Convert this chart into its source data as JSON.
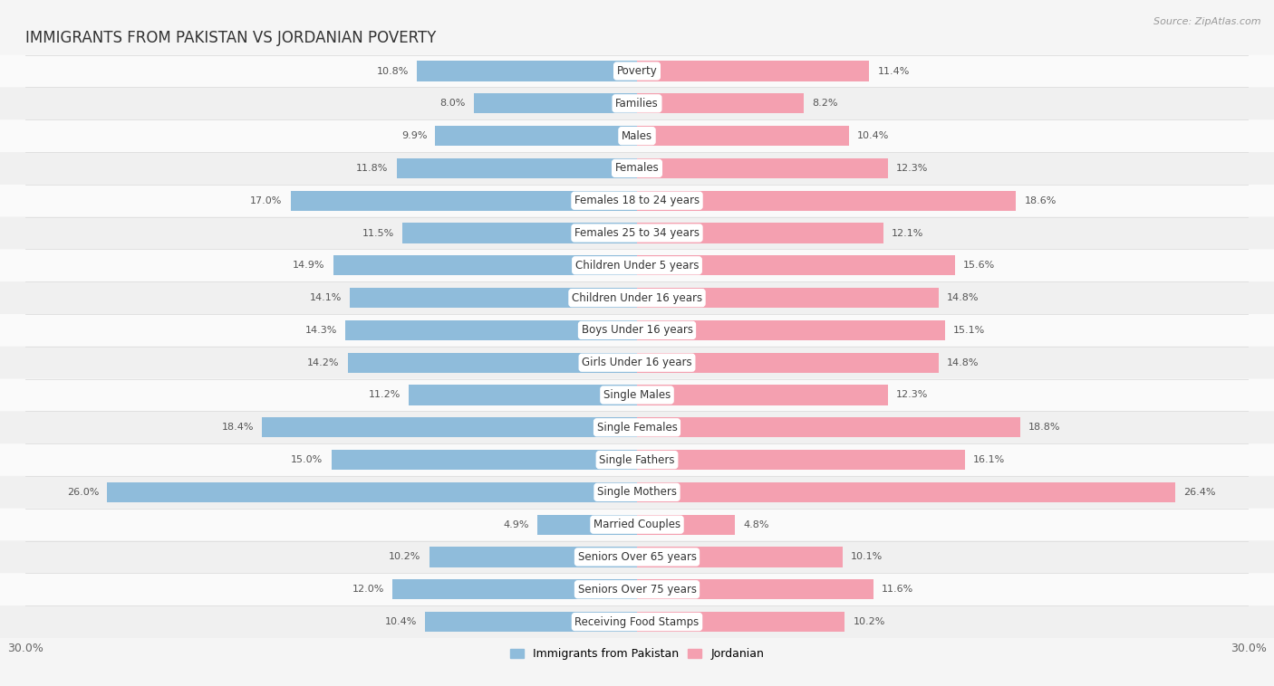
{
  "title": "IMMIGRANTS FROM PAKISTAN VS JORDANIAN POVERTY",
  "source": "Source: ZipAtlas.com",
  "categories": [
    "Poverty",
    "Families",
    "Males",
    "Females",
    "Females 18 to 24 years",
    "Females 25 to 34 years",
    "Children Under 5 years",
    "Children Under 16 years",
    "Boys Under 16 years",
    "Girls Under 16 years",
    "Single Males",
    "Single Females",
    "Single Fathers",
    "Single Mothers",
    "Married Couples",
    "Seniors Over 65 years",
    "Seniors Over 75 years",
    "Receiving Food Stamps"
  ],
  "pakistan_values": [
    10.8,
    8.0,
    9.9,
    11.8,
    17.0,
    11.5,
    14.9,
    14.1,
    14.3,
    14.2,
    11.2,
    18.4,
    15.0,
    26.0,
    4.9,
    10.2,
    12.0,
    10.4
  ],
  "jordanian_values": [
    11.4,
    8.2,
    10.4,
    12.3,
    18.6,
    12.1,
    15.6,
    14.8,
    15.1,
    14.8,
    12.3,
    18.8,
    16.1,
    26.4,
    4.8,
    10.1,
    11.6,
    10.2
  ],
  "pakistan_color": "#8fbcdb",
  "jordanian_color": "#f4a0b0",
  "row_color_odd": "#f0f0f0",
  "row_color_even": "#fafafa",
  "background_color": "#f5f5f5",
  "xlim": 30.0,
  "bar_height": 0.62,
  "title_fontsize": 12,
  "label_fontsize": 8.5,
  "value_fontsize": 8.0,
  "legend_fontsize": 9,
  "source_fontsize": 8
}
